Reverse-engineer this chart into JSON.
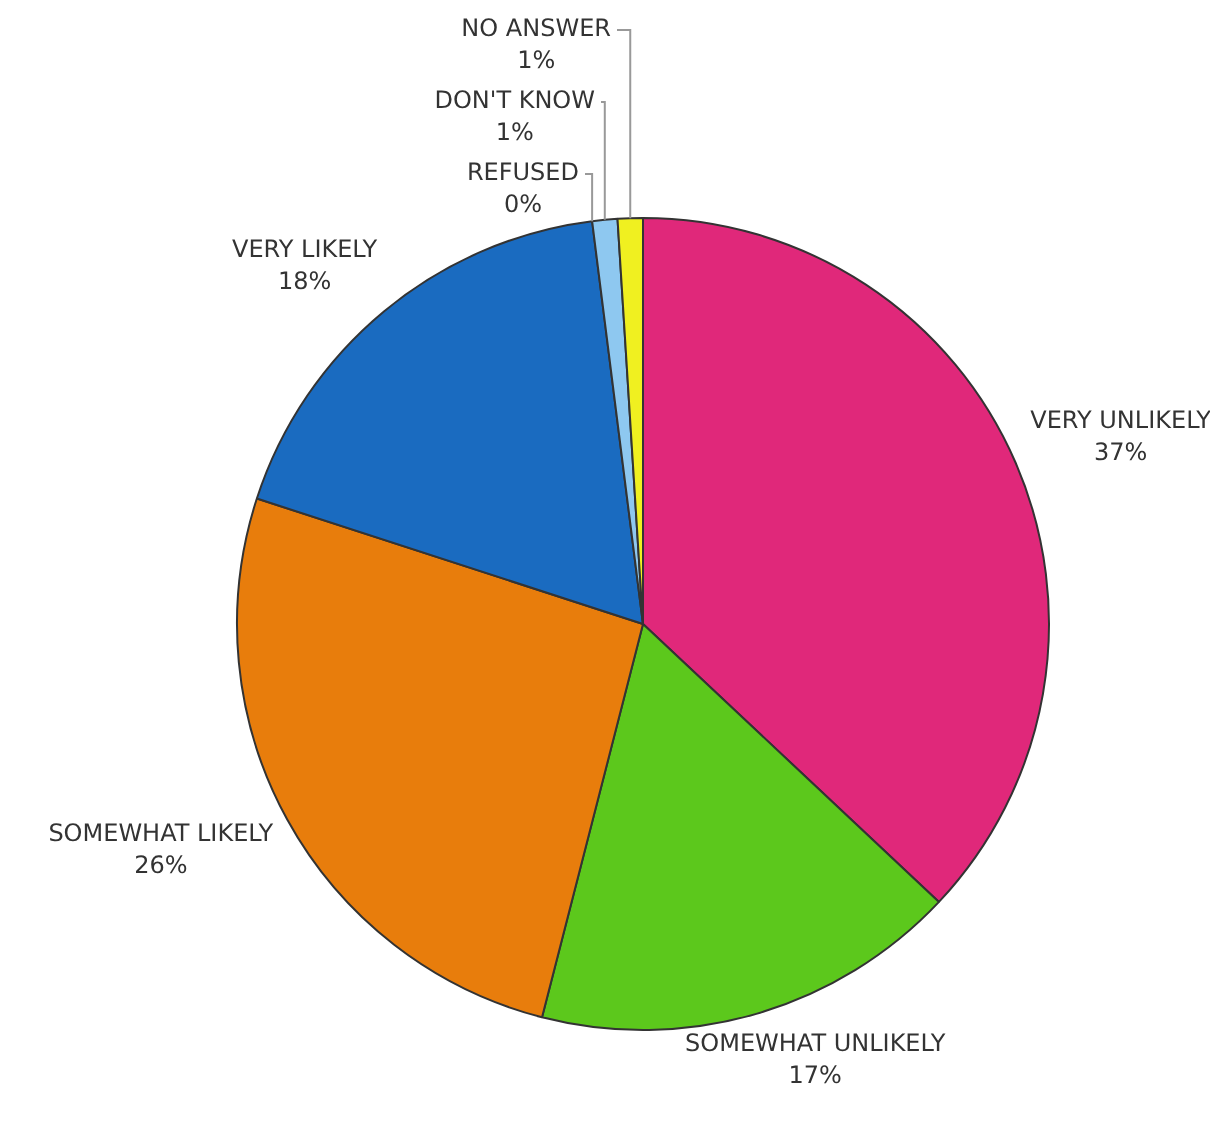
{
  "chart_data": {
    "type": "pie",
    "categories": [
      "VERY UNLIKELY",
      "SOMEWHAT UNLIKELY",
      "SOMEWHAT LIKELY",
      "VERY LIKELY",
      "REFUSED",
      "DON'T KNOW",
      "NO ANSWER"
    ],
    "values": [
      37,
      17,
      26,
      18,
      0,
      1,
      1
    ],
    "colors": [
      "#e0287a",
      "#5cc81c",
      "#e87d0c",
      "#1a6bc0",
      "#555555",
      "#8ec8f0",
      "#f0f020"
    ],
    "value_labels": [
      "37%",
      "17%",
      "26%",
      "18%",
      "0%",
      "1%",
      "1%"
    ],
    "legend": false
  }
}
